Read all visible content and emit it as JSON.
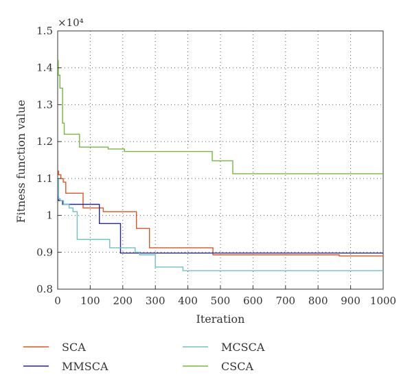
{
  "chart_data": {
    "type": "line",
    "xlabel": "Iteration",
    "ylabel": "Fitness function value",
    "y_multiplier_label": "×10⁴",
    "xlim": [
      0,
      1000
    ],
    "ylim": [
      0.8,
      1.5
    ],
    "x_ticks": [
      0,
      100,
      200,
      300,
      400,
      500,
      600,
      700,
      800,
      900,
      1000
    ],
    "y_ticks": [
      0.8,
      0.9,
      1,
      1.1,
      1.2,
      1.3,
      1.4,
      1.5
    ],
    "y_tick_labels": [
      "0.8",
      "0.9",
      "1",
      "1.1",
      "1.2",
      "1.3",
      "1.4",
      "1.5"
    ],
    "grid": true,
    "grid_style": "dotted",
    "legend_position": "bottom",
    "series": [
      {
        "name": "SCA",
        "color": "#e2531f",
        "x": [
          0,
          3,
          3,
          10,
          10,
          17,
          17,
          25,
          25,
          78,
          78,
          140,
          140,
          242,
          242,
          282,
          282,
          477,
          477,
          865,
          865,
          1000
        ],
        "y": [
          1.12,
          1.12,
          1.11,
          1.11,
          1.1,
          1.1,
          1.09,
          1.09,
          1.06,
          1.06,
          1.02,
          1.02,
          1.01,
          1.01,
          0.965,
          0.965,
          0.912,
          0.912,
          0.893,
          0.893,
          0.89,
          0.89
        ]
      },
      {
        "name": "MMSCA",
        "color": "#22258e",
        "x": [
          0,
          3,
          3,
          15,
          15,
          128,
          128,
          193,
          193,
          1000
        ],
        "y": [
          1.05,
          1.05,
          1.04,
          1.04,
          1.03,
          1.03,
          0.978,
          0.978,
          0.898,
          0.898
        ]
      },
      {
        "name": "MCSCA",
        "color": "#6ec0c4",
        "x": [
          0,
          3,
          3,
          8,
          8,
          18,
          18,
          35,
          35,
          47,
          47,
          60,
          60,
          160,
          160,
          190,
          190,
          238,
          238,
          252,
          252,
          300,
          300,
          385,
          385,
          1000
        ],
        "y": [
          1.1,
          1.1,
          1.045,
          1.045,
          1.04,
          1.04,
          1.03,
          1.03,
          1.02,
          1.02,
          1.01,
          1.01,
          0.935,
          0.935,
          0.912,
          0.912,
          0.912,
          0.912,
          0.9,
          0.9,
          0.893,
          0.893,
          0.86,
          0.86,
          0.85,
          0.85
        ]
      },
      {
        "name": "CSCA",
        "color": "#74b83a",
        "x": [
          0,
          2,
          2,
          7,
          7,
          15,
          15,
          20,
          20,
          67,
          67,
          155,
          155,
          205,
          205,
          475,
          475,
          538,
          538,
          1000
        ],
        "y": [
          1.42,
          1.42,
          1.38,
          1.38,
          1.345,
          1.345,
          1.25,
          1.25,
          1.22,
          1.22,
          1.185,
          1.185,
          1.18,
          1.18,
          1.173,
          1.173,
          1.148,
          1.148,
          1.113,
          1.113
        ]
      }
    ]
  }
}
